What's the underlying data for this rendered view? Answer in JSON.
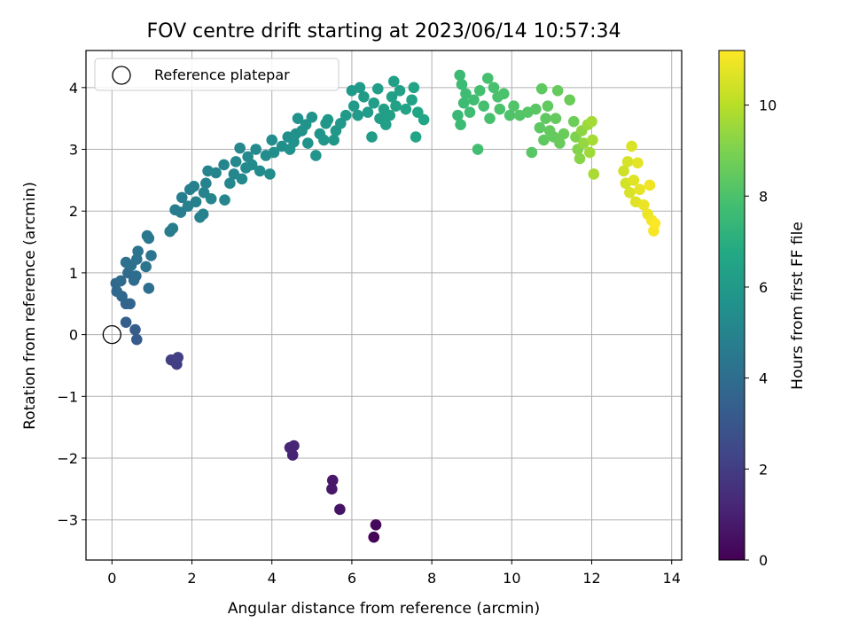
{
  "chart_data": {
    "type": "scatter",
    "title": "FOV centre drift starting at 2023/06/14 10:57:34",
    "xlabel": "Angular distance from reference (arcmin)",
    "ylabel": "Rotation from reference (arcmin)",
    "xlim": [
      -0.65,
      14.25
    ],
    "ylim": [
      -3.65,
      4.6
    ],
    "xticks": [
      0,
      2,
      4,
      6,
      8,
      10,
      12,
      14
    ],
    "yticks": [
      -3,
      -2,
      -1,
      0,
      1,
      2,
      3,
      4
    ],
    "xtick_labels": [
      "0",
      "2",
      "4",
      "6",
      "8",
      "10",
      "12",
      "14"
    ],
    "ytick_labels": [
      "−3",
      "−2",
      "−1",
      "0",
      "1",
      "2",
      "3",
      "4"
    ],
    "grid": true,
    "legend": {
      "position": "top-left",
      "entries": [
        "Reference platepar"
      ]
    },
    "reference_point": {
      "x": 0,
      "y": 0,
      "label": "Reference platepar",
      "marker": "open-circle"
    },
    "colorbar": {
      "label": "Hours from first FF file",
      "colormap": "viridis",
      "range": [
        0,
        11.2
      ],
      "ticks": [
        0,
        2,
        4,
        6,
        8,
        10
      ],
      "tick_labels": [
        "0",
        "2",
        "4",
        "6",
        "8",
        "10"
      ]
    },
    "points": [
      {
        "x": 6.55,
        "y": -3.28,
        "c": 0.1
      },
      {
        "x": 6.6,
        "y": -3.08,
        "c": 0.2
      },
      {
        "x": 5.7,
        "y": -2.83,
        "c": 0.6
      },
      {
        "x": 5.5,
        "y": -2.5,
        "c": 0.7
      },
      {
        "x": 5.52,
        "y": -2.36,
        "c": 0.75
      },
      {
        "x": 4.52,
        "y": -1.95,
        "c": 1.1
      },
      {
        "x": 4.45,
        "y": -1.83,
        "c": 1.15
      },
      {
        "x": 4.55,
        "y": -1.8,
        "c": 1.2
      },
      {
        "x": 1.62,
        "y": -0.48,
        "c": 2.0
      },
      {
        "x": 1.65,
        "y": -0.37,
        "c": 2.1
      },
      {
        "x": 1.48,
        "y": -0.41,
        "c": 2.05
      },
      {
        "x": 0.62,
        "y": -0.08,
        "c": 3.2
      },
      {
        "x": 0.58,
        "y": 0.08,
        "c": 3.25
      },
      {
        "x": 0.35,
        "y": 0.2,
        "c": 3.3
      },
      {
        "x": 0.35,
        "y": 0.5,
        "c": 3.6
      },
      {
        "x": 0.45,
        "y": 0.5,
        "c": 3.65
      },
      {
        "x": 0.25,
        "y": 0.62,
        "c": 3.7
      },
      {
        "x": 0.12,
        "y": 0.7,
        "c": 3.75
      },
      {
        "x": 0.1,
        "y": 0.83,
        "c": 3.8
      },
      {
        "x": 0.22,
        "y": 0.87,
        "c": 3.85
      },
      {
        "x": 0.4,
        "y": 1.0,
        "c": 3.9
      },
      {
        "x": 0.55,
        "y": 0.88,
        "c": 3.95
      },
      {
        "x": 0.6,
        "y": 0.95,
        "c": 4.0
      },
      {
        "x": 0.92,
        "y": 0.75,
        "c": 4.05
      },
      {
        "x": 0.35,
        "y": 1.17,
        "c": 4.1
      },
      {
        "x": 0.48,
        "y": 1.12,
        "c": 4.15
      },
      {
        "x": 0.62,
        "y": 1.22,
        "c": 4.2
      },
      {
        "x": 0.65,
        "y": 1.35,
        "c": 4.25
      },
      {
        "x": 0.85,
        "y": 1.1,
        "c": 4.3
      },
      {
        "x": 0.98,
        "y": 1.28,
        "c": 4.35
      },
      {
        "x": 0.88,
        "y": 1.6,
        "c": 4.4
      },
      {
        "x": 0.92,
        "y": 1.56,
        "c": 4.45
      },
      {
        "x": 1.52,
        "y": 1.72,
        "c": 4.6
      },
      {
        "x": 1.45,
        "y": 1.67,
        "c": 4.62
      },
      {
        "x": 1.58,
        "y": 2.02,
        "c": 4.7
      },
      {
        "x": 1.72,
        "y": 1.98,
        "c": 4.72
      },
      {
        "x": 1.75,
        "y": 2.22,
        "c": 4.75
      },
      {
        "x": 1.9,
        "y": 2.08,
        "c": 4.78
      },
      {
        "x": 1.95,
        "y": 2.35,
        "c": 4.8
      },
      {
        "x": 2.05,
        "y": 2.4,
        "c": 4.85
      },
      {
        "x": 2.1,
        "y": 2.15,
        "c": 4.88
      },
      {
        "x": 2.2,
        "y": 1.9,
        "c": 4.9
      },
      {
        "x": 2.28,
        "y": 1.95,
        "c": 4.92
      },
      {
        "x": 2.3,
        "y": 2.3,
        "c": 4.95
      },
      {
        "x": 2.35,
        "y": 2.45,
        "c": 4.98
      },
      {
        "x": 2.4,
        "y": 2.65,
        "c": 5.0
      },
      {
        "x": 2.48,
        "y": 2.2,
        "c": 5.02
      },
      {
        "x": 2.6,
        "y": 2.62,
        "c": 5.05
      },
      {
        "x": 2.8,
        "y": 2.75,
        "c": 5.08
      },
      {
        "x": 2.82,
        "y": 2.18,
        "c": 5.1
      },
      {
        "x": 2.95,
        "y": 2.45,
        "c": 5.12
      },
      {
        "x": 3.05,
        "y": 2.6,
        "c": 5.15
      },
      {
        "x": 3.1,
        "y": 2.8,
        "c": 5.18
      },
      {
        "x": 3.2,
        "y": 3.02,
        "c": 5.2
      },
      {
        "x": 3.25,
        "y": 2.52,
        "c": 5.22
      },
      {
        "x": 3.35,
        "y": 2.7,
        "c": 5.25
      },
      {
        "x": 3.4,
        "y": 2.88,
        "c": 5.28
      },
      {
        "x": 3.5,
        "y": 2.75,
        "c": 5.3
      },
      {
        "x": 3.6,
        "y": 3.0,
        "c": 5.32
      },
      {
        "x": 3.7,
        "y": 2.65,
        "c": 5.35
      },
      {
        "x": 3.85,
        "y": 2.9,
        "c": 5.38
      },
      {
        "x": 3.95,
        "y": 2.6,
        "c": 5.4
      },
      {
        "x": 4.0,
        "y": 3.15,
        "c": 5.42
      },
      {
        "x": 4.05,
        "y": 2.95,
        "c": 5.45
      },
      {
        "x": 4.25,
        "y": 3.05,
        "c": 5.5
      },
      {
        "x": 4.4,
        "y": 3.2,
        "c": 5.55
      },
      {
        "x": 4.45,
        "y": 3.0,
        "c": 5.58
      },
      {
        "x": 4.55,
        "y": 3.12,
        "c": 5.6
      },
      {
        "x": 4.6,
        "y": 3.25,
        "c": 5.62
      },
      {
        "x": 4.65,
        "y": 3.5,
        "c": 5.65
      },
      {
        "x": 4.75,
        "y": 3.3,
        "c": 5.68
      },
      {
        "x": 4.85,
        "y": 3.4,
        "c": 5.7
      },
      {
        "x": 4.9,
        "y": 3.1,
        "c": 5.72
      },
      {
        "x": 5.0,
        "y": 3.52,
        "c": 5.75
      },
      {
        "x": 5.1,
        "y": 2.9,
        "c": 5.78
      },
      {
        "x": 5.2,
        "y": 3.25,
        "c": 5.8
      },
      {
        "x": 5.3,
        "y": 3.15,
        "c": 5.82
      },
      {
        "x": 5.35,
        "y": 3.42,
        "c": 5.85
      },
      {
        "x": 5.4,
        "y": 3.48,
        "c": 5.88
      },
      {
        "x": 5.55,
        "y": 3.15,
        "c": 5.9
      },
      {
        "x": 5.6,
        "y": 3.3,
        "c": 5.92
      },
      {
        "x": 5.72,
        "y": 3.42,
        "c": 5.95
      },
      {
        "x": 5.85,
        "y": 3.55,
        "c": 5.98
      },
      {
        "x": 6.0,
        "y": 3.95,
        "c": 6.0
      },
      {
        "x": 6.05,
        "y": 3.7,
        "c": 6.02
      },
      {
        "x": 6.15,
        "y": 3.55,
        "c": 6.05
      },
      {
        "x": 6.2,
        "y": 4.0,
        "c": 6.08
      },
      {
        "x": 6.3,
        "y": 3.85,
        "c": 6.1
      },
      {
        "x": 6.4,
        "y": 3.6,
        "c": 6.12
      },
      {
        "x": 6.5,
        "y": 3.2,
        "c": 6.15
      },
      {
        "x": 6.55,
        "y": 3.75,
        "c": 6.18
      },
      {
        "x": 6.65,
        "y": 3.98,
        "c": 6.2
      },
      {
        "x": 6.7,
        "y": 3.5,
        "c": 6.22
      },
      {
        "x": 6.8,
        "y": 3.65,
        "c": 6.25
      },
      {
        "x": 6.85,
        "y": 3.4,
        "c": 6.28
      },
      {
        "x": 6.95,
        "y": 3.55,
        "c": 6.3
      },
      {
        "x": 7.0,
        "y": 3.85,
        "c": 6.32
      },
      {
        "x": 7.05,
        "y": 4.1,
        "c": 6.35
      },
      {
        "x": 7.1,
        "y": 3.7,
        "c": 6.38
      },
      {
        "x": 7.2,
        "y": 3.95,
        "c": 6.4
      },
      {
        "x": 7.35,
        "y": 3.65,
        "c": 6.45
      },
      {
        "x": 7.5,
        "y": 3.8,
        "c": 6.5
      },
      {
        "x": 7.55,
        "y": 4.0,
        "c": 6.52
      },
      {
        "x": 7.6,
        "y": 3.2,
        "c": 6.55
      },
      {
        "x": 7.65,
        "y": 3.6,
        "c": 6.58
      },
      {
        "x": 7.8,
        "y": 3.48,
        "c": 6.6
      },
      {
        "x": 8.65,
        "y": 3.55,
        "c": 7.5
      },
      {
        "x": 8.7,
        "y": 4.2,
        "c": 7.55
      },
      {
        "x": 8.72,
        "y": 3.4,
        "c": 7.6
      },
      {
        "x": 8.75,
        "y": 4.05,
        "c": 7.62
      },
      {
        "x": 8.8,
        "y": 3.75,
        "c": 7.65
      },
      {
        "x": 8.85,
        "y": 3.9,
        "c": 7.68
      },
      {
        "x": 8.95,
        "y": 3.6,
        "c": 7.7
      },
      {
        "x": 9.05,
        "y": 3.8,
        "c": 7.75
      },
      {
        "x": 9.15,
        "y": 3.0,
        "c": 7.8
      },
      {
        "x": 9.2,
        "y": 3.95,
        "c": 7.82
      },
      {
        "x": 9.3,
        "y": 3.7,
        "c": 7.85
      },
      {
        "x": 9.4,
        "y": 4.15,
        "c": 7.88
      },
      {
        "x": 9.45,
        "y": 3.5,
        "c": 7.9
      },
      {
        "x": 9.55,
        "y": 4.0,
        "c": 7.92
      },
      {
        "x": 9.65,
        "y": 3.85,
        "c": 7.95
      },
      {
        "x": 9.7,
        "y": 3.65,
        "c": 7.98
      },
      {
        "x": 9.8,
        "y": 3.9,
        "c": 8.0
      },
      {
        "x": 9.95,
        "y": 3.55,
        "c": 8.05
      },
      {
        "x": 10.05,
        "y": 3.7,
        "c": 8.1
      },
      {
        "x": 10.2,
        "y": 3.55,
        "c": 8.15
      },
      {
        "x": 10.4,
        "y": 3.6,
        "c": 8.2
      },
      {
        "x": 10.5,
        "y": 2.95,
        "c": 8.25
      },
      {
        "x": 10.6,
        "y": 3.65,
        "c": 8.3
      },
      {
        "x": 10.7,
        "y": 3.35,
        "c": 8.35
      },
      {
        "x": 10.75,
        "y": 3.98,
        "c": 8.38
      },
      {
        "x": 10.8,
        "y": 3.15,
        "c": 8.4
      },
      {
        "x": 10.85,
        "y": 3.5,
        "c": 8.42
      },
      {
        "x": 10.9,
        "y": 3.7,
        "c": 8.45
      },
      {
        "x": 10.95,
        "y": 3.3,
        "c": 8.48
      },
      {
        "x": 11.05,
        "y": 3.2,
        "c": 8.5
      },
      {
        "x": 11.1,
        "y": 3.5,
        "c": 8.52
      },
      {
        "x": 11.15,
        "y": 3.95,
        "c": 8.55
      },
      {
        "x": 11.2,
        "y": 3.1,
        "c": 8.58
      },
      {
        "x": 11.3,
        "y": 3.25,
        "c": 8.6
      },
      {
        "x": 11.45,
        "y": 3.8,
        "c": 8.65
      },
      {
        "x": 11.55,
        "y": 3.45,
        "c": 8.7
      },
      {
        "x": 11.6,
        "y": 3.2,
        "c": 9.0
      },
      {
        "x": 11.65,
        "y": 3.0,
        "c": 9.1
      },
      {
        "x": 11.7,
        "y": 2.85,
        "c": 9.2
      },
      {
        "x": 11.75,
        "y": 3.3,
        "c": 9.3
      },
      {
        "x": 11.8,
        "y": 3.1,
        "c": 9.4
      },
      {
        "x": 11.9,
        "y": 3.4,
        "c": 9.5
      },
      {
        "x": 11.95,
        "y": 2.95,
        "c": 9.6
      },
      {
        "x": 12.0,
        "y": 3.45,
        "c": 9.65
      },
      {
        "x": 12.02,
        "y": 3.15,
        "c": 9.7
      },
      {
        "x": 12.05,
        "y": 2.6,
        "c": 9.75
      },
      {
        "x": 12.8,
        "y": 2.65,
        "c": 10.4
      },
      {
        "x": 12.85,
        "y": 2.45,
        "c": 10.45
      },
      {
        "x": 12.9,
        "y": 2.8,
        "c": 10.5
      },
      {
        "x": 12.95,
        "y": 2.3,
        "c": 10.55
      },
      {
        "x": 13.0,
        "y": 3.05,
        "c": 10.6
      },
      {
        "x": 13.05,
        "y": 2.5,
        "c": 10.65
      },
      {
        "x": 13.1,
        "y": 2.15,
        "c": 10.7
      },
      {
        "x": 13.15,
        "y": 2.78,
        "c": 10.75
      },
      {
        "x": 13.2,
        "y": 2.35,
        "c": 10.8
      },
      {
        "x": 13.3,
        "y": 2.1,
        "c": 10.85
      },
      {
        "x": 13.4,
        "y": 1.95,
        "c": 10.9
      },
      {
        "x": 13.45,
        "y": 2.42,
        "c": 10.95
      },
      {
        "x": 13.5,
        "y": 1.85,
        "c": 11.0
      },
      {
        "x": 13.55,
        "y": 1.68,
        "c": 11.1
      },
      {
        "x": 13.58,
        "y": 1.8,
        "c": 11.15
      }
    ]
  }
}
